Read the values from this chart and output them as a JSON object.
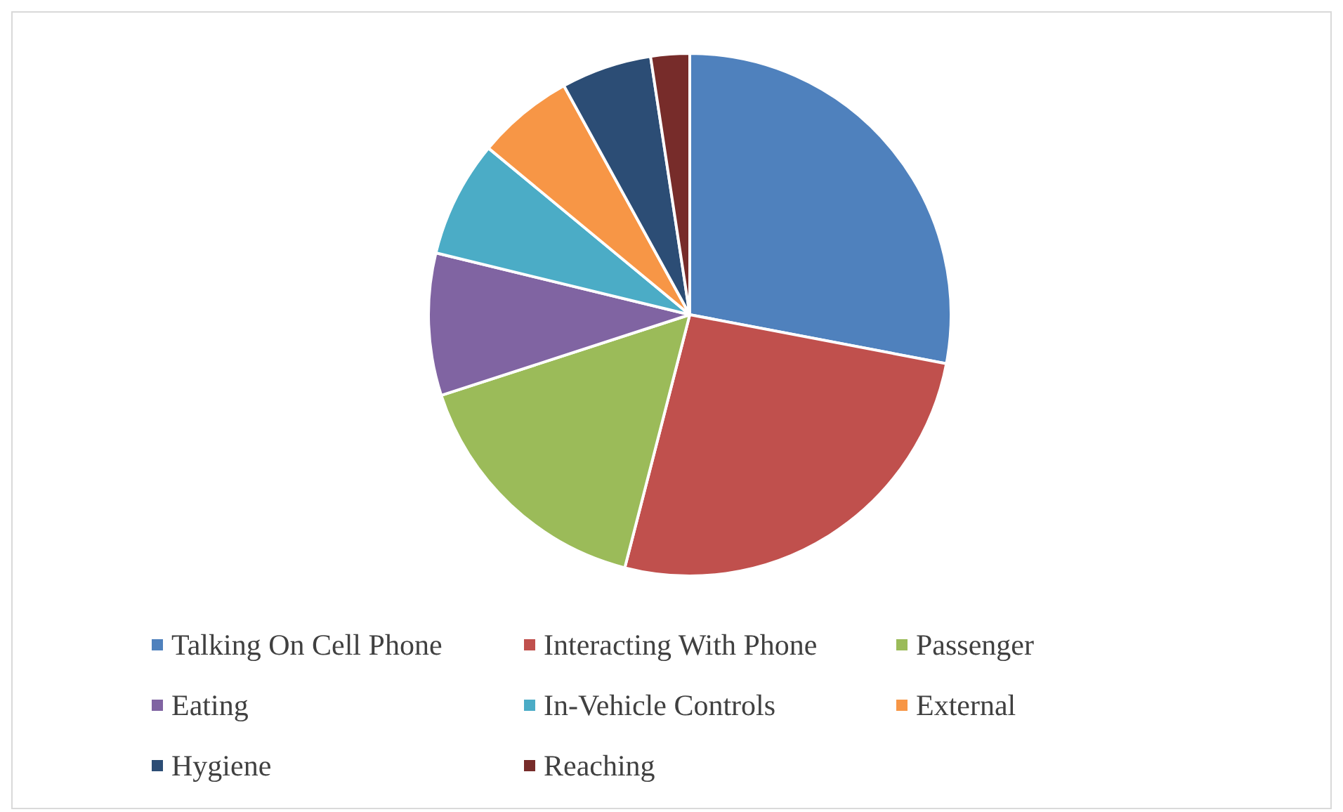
{
  "chart_data": {
    "type": "pie",
    "categories": [
      "Talking On Cell Phone",
      "Interacting With Phone",
      "Passenger",
      "Eating",
      "In-Vehicle Controls",
      "External",
      "Hygiene",
      "Reaching"
    ],
    "values": [
      28,
      26,
      16,
      8.8,
      7.2,
      6,
      5.6,
      2.4
    ],
    "colors": [
      "#4f81bd",
      "#c0504d",
      "#9bbb59",
      "#8064a2",
      "#4bacc6",
      "#f79646",
      "#2c4d75",
      "#772c2a"
    ],
    "legend": "bottom"
  }
}
